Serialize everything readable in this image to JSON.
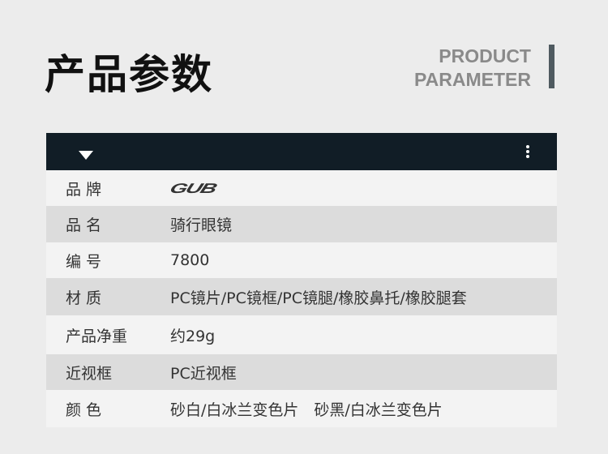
{
  "title": "产品参数",
  "subtitle_en": [
    "PRODUCT",
    "PARAMETER"
  ],
  "rows": [
    {
      "key": "品 牌",
      "value": "GUB",
      "logo": true
    },
    {
      "key": "品 名",
      "value": "骑行眼镜"
    },
    {
      "key": "编 号",
      "value": "7800"
    },
    {
      "key": "材 质",
      "value": "PC镜片/PC镜框/PC镜腿/橡胶鼻托/橡胶腿套"
    },
    {
      "key": "产品净重",
      "value": "约29g"
    },
    {
      "key": "近视框",
      "value": "PC近视框"
    },
    {
      "key": "颜 色",
      "value": "砂白/白冰兰变色片　砂黑/白冰兰变色片"
    }
  ],
  "icons": {
    "collapse": "triangle-down-icon",
    "menu": "more-vertical-icon"
  },
  "colors": {
    "header": "#111d26",
    "accent_bar": "#4f5a60"
  }
}
